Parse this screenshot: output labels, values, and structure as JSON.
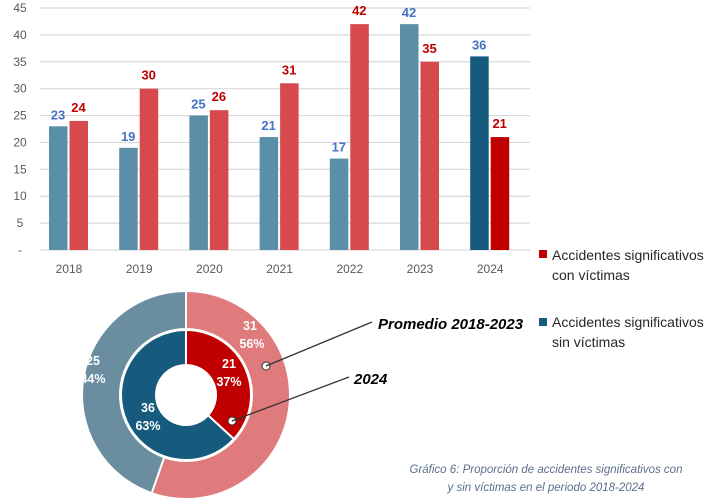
{
  "chart_data": [
    {
      "type": "bar",
      "categories": [
        "2018",
        "2019",
        "2020",
        "2021",
        "2022",
        "2023",
        "2024"
      ],
      "ylim": [
        0,
        45
      ],
      "yticks": [
        "-",
        "5",
        "10",
        "15",
        "20",
        "25",
        "30",
        "35",
        "40",
        "45"
      ],
      "grid": true,
      "series": [
        {
          "name": "Accidentes significativos sin víctimas",
          "values": [
            23,
            19,
            25,
            21,
            17,
            42,
            36
          ],
          "color": "#5b8fa8",
          "highlight_color": "#165a7d",
          "label_color": "#4472c4"
        },
        {
          "name": "Accidentes significativos con víctimas",
          "values": [
            24,
            30,
            26,
            31,
            42,
            35,
            21
          ],
          "color": "#d64a4e",
          "highlight_color": "#c00000",
          "label_color": "#c00000"
        }
      ]
    },
    {
      "type": "pie",
      "subtype": "donut",
      "rings": [
        {
          "name": "Promedio 2018-2023",
          "slices": [
            {
              "series": "con víctimas",
              "value": 31,
              "percent": "56%",
              "color": "#e07b7d"
            },
            {
              "series": "sin víctimas",
              "value": 25,
              "percent": "44%",
              "color": "#6a8da0"
            }
          ]
        },
        {
          "name": "2024",
          "slices": [
            {
              "series": "con víctimas",
              "value": 21,
              "percent": "37%",
              "color": "#c00000"
            },
            {
              "series": "sin víctimas",
              "value": 36,
              "percent": "63%",
              "color": "#165a7d"
            }
          ]
        }
      ]
    }
  ],
  "legend": {
    "placement": "right",
    "items": [
      {
        "line1": "Accidentes significativos",
        "line2": "con víctimas",
        "color": "#c00000"
      },
      {
        "line1": "Accidentes significativos",
        "line2": "sin víctimas",
        "color": "#165a7d"
      }
    ]
  },
  "caption": {
    "line1": "Gráfico 6: Proporción de accidentes significativos con",
    "line2": "y sin víctimas en el periodo 2018-2024"
  }
}
